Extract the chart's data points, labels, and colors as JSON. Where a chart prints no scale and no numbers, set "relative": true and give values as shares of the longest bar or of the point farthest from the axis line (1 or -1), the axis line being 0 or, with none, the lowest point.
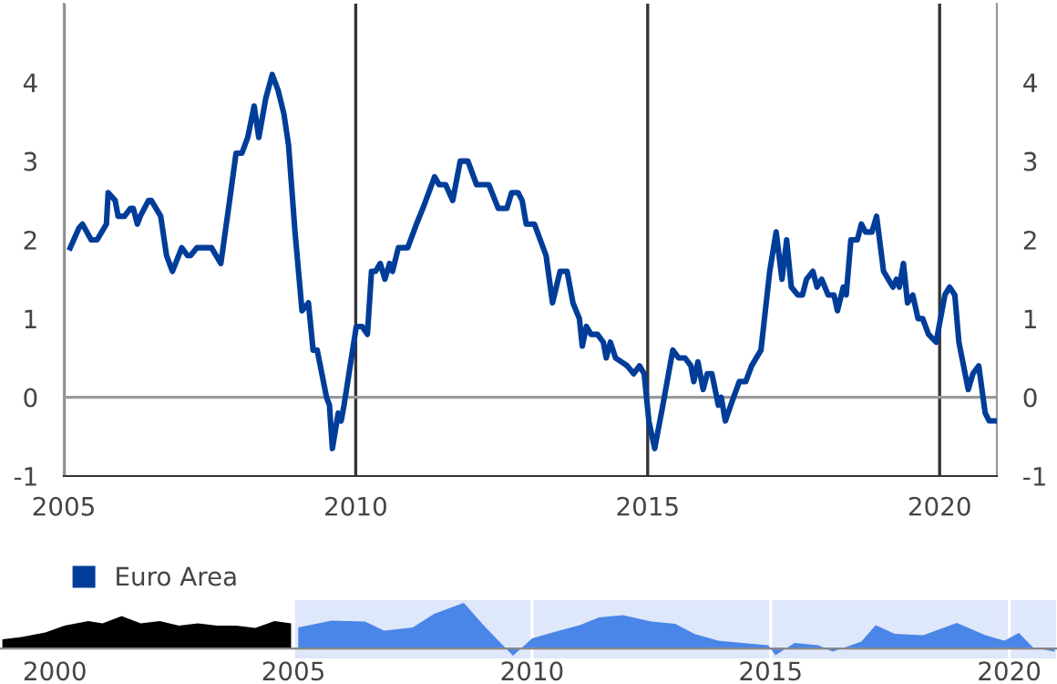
{
  "chart_data": [
    {
      "type": "line",
      "x": [
        2005.11,
        2005.26,
        2005.32,
        2005.47,
        2005.57,
        2005.73,
        2005.76,
        2005.88,
        2005.93,
        2006.04,
        2006.14,
        2006.19,
        2006.26,
        2006.31,
        2006.45,
        2006.5,
        2006.66,
        2006.76,
        2006.86,
        2007.02,
        2007.12,
        2007.17,
        2007.28,
        2007.53,
        2007.69,
        2007.84,
        2007.95,
        2008.05,
        2008.15,
        2008.26,
        2008.34,
        2008.46,
        2008.57,
        2008.67,
        2008.77,
        2008.85,
        2008.96,
        2009.08,
        2009.19,
        2009.27,
        2009.34,
        2009.5,
        2009.55,
        2009.6,
        2009.7,
        2009.75,
        2009.8,
        2010.01,
        2010.11,
        2010.2,
        2010.27,
        2010.34,
        2010.42,
        2010.5,
        2010.58,
        2010.63,
        2010.73,
        2010.89,
        2011.04,
        2011.15,
        2011.3,
        2011.35,
        2011.43,
        2011.54,
        2011.66,
        2011.79,
        2011.92,
        2012.07,
        2012.28,
        2012.44,
        2012.59,
        2012.67,
        2012.78,
        2012.85,
        2012.92,
        2013.06,
        2013.16,
        2013.26,
        2013.37,
        2013.5,
        2013.62,
        2013.72,
        2013.83,
        2013.88,
        2013.95,
        2014.03,
        2014.14,
        2014.24,
        2014.29,
        2014.36,
        2014.45,
        2014.55,
        2014.65,
        2014.76,
        2014.86,
        2014.94,
        2015.02,
        2015.12,
        2015.26,
        2015.43,
        2015.53,
        2015.64,
        2015.74,
        2015.79,
        2015.86,
        2015.95,
        2016.02,
        2016.1,
        2016.21,
        2016.26,
        2016.33,
        2016.47,
        2016.57,
        2016.68,
        2016.78,
        2016.94,
        2017.09,
        2017.2,
        2017.3,
        2017.38,
        2017.46,
        2017.57,
        2017.65,
        2017.72,
        2017.83,
        2017.9,
        2017.98,
        2018.09,
        2018.19,
        2018.25,
        2018.35,
        2018.4,
        2018.48,
        2018.59,
        2018.66,
        2018.73,
        2018.84,
        2018.92,
        2019.04,
        2019.12,
        2019.2,
        2019.26,
        2019.31,
        2019.38,
        2019.45,
        2019.54,
        2019.63,
        2019.71,
        2019.81,
        2019.94,
        2020.09,
        2020.17,
        2020.26,
        2020.33,
        2020.49,
        2020.57,
        2020.67,
        2020.78,
        2020.85,
        2020.95
      ],
      "series": [
        {
          "name": "Euro Area",
          "color": "#003d99",
          "values": [
            1.9,
            2.15,
            2.2,
            2.0,
            2.0,
            2.2,
            2.6,
            2.5,
            2.3,
            2.3,
            2.4,
            2.4,
            2.2,
            2.3,
            2.5,
            2.5,
            2.3,
            1.8,
            1.6,
            1.9,
            1.8,
            1.8,
            1.9,
            1.9,
            1.7,
            2.5,
            3.1,
            3.1,
            3.3,
            3.7,
            3.3,
            3.8,
            4.1,
            3.9,
            3.6,
            3.2,
            2.1,
            1.1,
            1.2,
            0.6,
            0.6,
            0.0,
            -0.1,
            -0.65,
            -0.2,
            -0.3,
            -0.1,
            0.9,
            0.9,
            0.8,
            1.6,
            1.6,
            1.7,
            1.5,
            1.7,
            1.6,
            1.9,
            1.9,
            2.2,
            2.4,
            2.7,
            2.8,
            2.7,
            2.7,
            2.5,
            3.0,
            3.0,
            2.7,
            2.7,
            2.4,
            2.4,
            2.6,
            2.6,
            2.5,
            2.2,
            2.2,
            2.0,
            1.8,
            1.2,
            1.6,
            1.6,
            1.2,
            1.0,
            0.65,
            0.9,
            0.8,
            0.8,
            0.7,
            0.5,
            0.7,
            0.5,
            0.45,
            0.4,
            0.3,
            0.4,
            0.3,
            -0.3,
            -0.65,
            -0.1,
            0.6,
            0.5,
            0.5,
            0.4,
            0.2,
            0.45,
            0.1,
            0.3,
            0.3,
            -0.1,
            0.0,
            -0.3,
            0.0,
            0.2,
            0.2,
            0.4,
            0.6,
            1.6,
            2.1,
            1.5,
            2.0,
            1.4,
            1.3,
            1.3,
            1.5,
            1.6,
            1.4,
            1.5,
            1.3,
            1.3,
            1.1,
            1.4,
            1.3,
            2.0,
            2.0,
            2.2,
            2.1,
            2.1,
            2.3,
            1.6,
            1.5,
            1.4,
            1.5,
            1.4,
            1.7,
            1.2,
            1.3,
            1.0,
            1.0,
            0.8,
            0.7,
            1.3,
            1.4,
            1.3,
            0.7,
            0.1,
            0.3,
            0.4,
            -0.2,
            -0.3,
            -0.3
          ]
        }
      ],
      "xlim": [
        2005.0,
        2020.98
      ],
      "xticks": [
        2005,
        2010,
        2015,
        2020
      ],
      "ylim": [
        -1,
        5
      ],
      "yticks": [
        -1,
        0,
        1,
        2,
        3,
        4
      ],
      "y2lim": [
        -1,
        5
      ],
      "y2ticks": [
        -1,
        0,
        1,
        2,
        3,
        4
      ],
      "grid": "x",
      "legend": "bottom left",
      "line_style": "solid",
      "marker": "none",
      "ref_lines": [
        {
          "axis": "y",
          "value": 0,
          "color": "#999999"
        }
      ]
    },
    {
      "type": "area",
      "relative": true,
      "series": [
        {
          "color": "#000000",
          "x": [
            1998.9,
            1999.3,
            1999.8,
            2000.2,
            2000.7,
            2001.0,
            2001.4,
            2001.8,
            2002.2,
            2002.6,
            2003.0,
            2003.4,
            2003.8,
            2004.2,
            2004.6,
            2004.95
          ],
          "values": [
            0.2,
            0.25,
            0.35,
            0.5,
            0.6,
            0.55,
            0.71,
            0.55,
            0.6,
            0.5,
            0.55,
            0.5,
            0.5,
            0.45,
            0.6,
            0.55
          ]
        },
        {
          "color": "#4a86e8",
          "x": [
            2005.1,
            2005.8,
            2006.5,
            2006.9,
            2007.5,
            2007.95,
            2008.57,
            2009.0,
            2009.6,
            2010.0,
            2010.5,
            2011.0,
            2011.4,
            2011.9,
            2012.5,
            2013.0,
            2013.4,
            2013.9,
            2014.5,
            2014.95,
            2015.1,
            2015.5,
            2016.0,
            2016.3,
            2016.9,
            2017.2,
            2017.6,
            2018.2,
            2018.9,
            2019.5,
            2019.9,
            2020.2,
            2020.5,
            2020.95
          ],
          "values": [
            0.46,
            0.61,
            0.59,
            0.39,
            0.46,
            0.76,
            1.0,
            0.49,
            -0.16,
            0.22,
            0.37,
            0.51,
            0.68,
            0.73,
            0.59,
            0.54,
            0.32,
            0.17,
            0.11,
            0.07,
            -0.15,
            0.12,
            0.07,
            -0.07,
            0.15,
            0.51,
            0.32,
            0.29,
            0.56,
            0.29,
            0.17,
            0.34,
            0.02,
            -0.07
          ]
        }
      ],
      "xlim": [
        1998.85,
        2021.0
      ],
      "xticks": [
        2000,
        2005,
        2010,
        2015,
        2020
      ],
      "grid": "x",
      "bands": [
        {
          "axis": "x",
          "from": 2005.0,
          "to": 2020.98,
          "color": "#dfe7fa"
        }
      ]
    }
  ]
}
